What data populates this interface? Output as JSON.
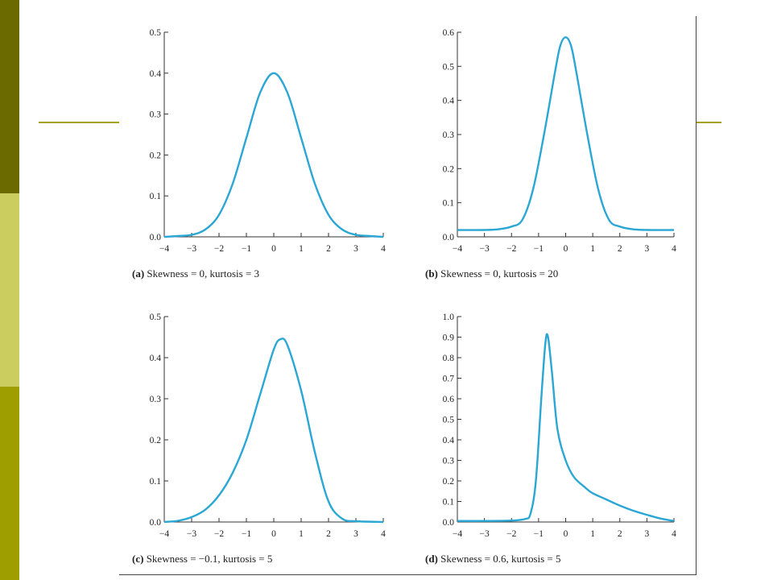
{
  "slide": {
    "theme_colors": {
      "band_top": "#6b6a00",
      "band_middle": "#cccd5f",
      "band_bottom": "#9e9e00",
      "accent_line": "#a6a21a",
      "curve": "#2aa7d4"
    }
  },
  "chart_data": [
    {
      "type": "line",
      "panel": "(a)",
      "caption": "Skewness = 0, kurtosis = 3",
      "xlim": [
        -4,
        4
      ],
      "ylim": [
        0,
        0.5
      ],
      "xticks": [
        "−4",
        "−3",
        "−2",
        "−1",
        "0",
        "1",
        "2",
        "3",
        "4"
      ],
      "yticks": [
        "0.0",
        "0.1",
        "0.2",
        "0.3",
        "0.4",
        "0.5"
      ],
      "x": [
        -4,
        -3.5,
        -3,
        -2.5,
        -2,
        -1.5,
        -1,
        -0.5,
        0,
        0.5,
        1,
        1.5,
        2,
        2.5,
        3,
        3.5,
        4
      ],
      "y": [
        0.0,
        0.002,
        0.005,
        0.018,
        0.054,
        0.13,
        0.242,
        0.352,
        0.4,
        0.352,
        0.242,
        0.13,
        0.054,
        0.018,
        0.005,
        0.002,
        0.0
      ]
    },
    {
      "type": "line",
      "panel": "(b)",
      "caption": "Skewness = 0, kurtosis = 20",
      "xlim": [
        -4,
        4
      ],
      "ylim": [
        0,
        0.6
      ],
      "xticks": [
        "−4",
        "−3",
        "−2",
        "−1",
        "0",
        "1",
        "2",
        "3",
        "4"
      ],
      "yticks": [
        "0.0",
        "0.1",
        "0.2",
        "0.3",
        "0.4",
        "0.5",
        "0.6"
      ],
      "x": [
        -4,
        -3,
        -2.5,
        -2,
        -1.6,
        -1.2,
        -0.8,
        -0.4,
        -0.2,
        0,
        0.2,
        0.4,
        0.8,
        1.2,
        1.6,
        2,
        2.5,
        3,
        4
      ],
      "y": [
        0.02,
        0.02,
        0.022,
        0.03,
        0.05,
        0.14,
        0.3,
        0.48,
        0.56,
        0.585,
        0.56,
        0.48,
        0.3,
        0.14,
        0.05,
        0.03,
        0.022,
        0.02,
        0.02
      ]
    },
    {
      "type": "line",
      "panel": "(c)",
      "caption": "Skewness = −0.1, kurtosis = 5",
      "xlim": [
        -4,
        4
      ],
      "ylim": [
        0,
        0.5
      ],
      "xticks": [
        "−4",
        "−3",
        "−2",
        "−1",
        "0",
        "1",
        "2",
        "3",
        "4"
      ],
      "yticks": [
        "0.0",
        "0.1",
        "0.2",
        "0.3",
        "0.4",
        "0.5"
      ],
      "x": [
        -4,
        -3.5,
        -3,
        -2.5,
        -2,
        -1.5,
        -1,
        -0.5,
        0,
        0.25,
        0.5,
        1,
        1.5,
        2,
        2.5,
        3,
        4
      ],
      "y": [
        0.0,
        0.003,
        0.012,
        0.03,
        0.065,
        0.12,
        0.2,
        0.31,
        0.42,
        0.445,
        0.43,
        0.32,
        0.17,
        0.05,
        0.008,
        0.002,
        0.0
      ]
    },
    {
      "type": "line",
      "panel": "(d)",
      "caption": "Skewness = 0.6, kurtosis = 5",
      "xlim": [
        -4,
        4
      ],
      "ylim": [
        0,
        1.0
      ],
      "xticks": [
        "−4",
        "−3",
        "−2",
        "−1",
        "0",
        "1",
        "2",
        "3",
        "4"
      ],
      "yticks": [
        "0.0",
        "0.1",
        "0.2",
        "0.3",
        "0.4",
        "0.5",
        "0.6",
        "0.7",
        "0.8",
        "0.9",
        "1.0"
      ],
      "x": [
        -4,
        -3,
        -2,
        -1.5,
        -1.3,
        -1.1,
        -0.9,
        -0.75,
        -0.65,
        -0.5,
        -0.3,
        0,
        0.3,
        0.7,
        1,
        1.5,
        2,
        2.5,
        3,
        3.5,
        4
      ],
      "y": [
        0.005,
        0.005,
        0.007,
        0.015,
        0.04,
        0.2,
        0.6,
        0.87,
        0.9,
        0.72,
        0.45,
        0.3,
        0.22,
        0.17,
        0.14,
        0.11,
        0.08,
        0.055,
        0.035,
        0.017,
        0.005
      ]
    }
  ]
}
